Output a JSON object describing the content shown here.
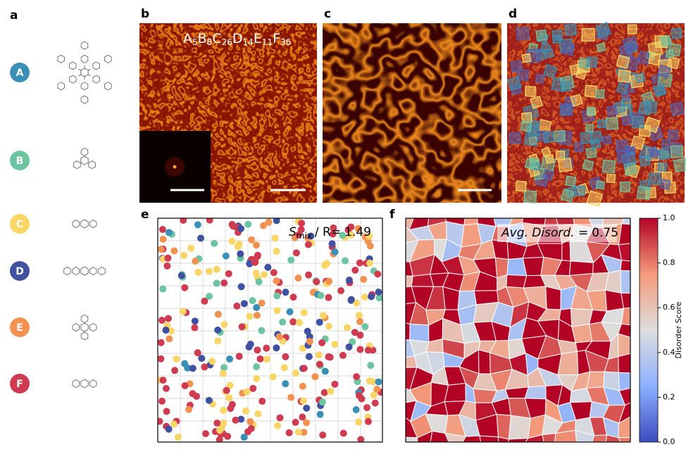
{
  "panels": [
    "a",
    "b",
    "c",
    "d",
    "e",
    "f"
  ],
  "molecules": [
    {
      "label": "A",
      "color": "#3a8fb4"
    },
    {
      "label": "B",
      "color": "#6cc4a0"
    },
    {
      "label": "C",
      "color": "#f8d565"
    },
    {
      "label": "D",
      "color": "#3f51a0"
    },
    {
      "label": "E",
      "color": "#f29150"
    },
    {
      "label": "F",
      "color": "#cf3b50"
    }
  ],
  "formula": [
    {
      "species": "A",
      "count": 5
    },
    {
      "species": "B",
      "count": 8
    },
    {
      "species": "C",
      "count": 26
    },
    {
      "species": "D",
      "count": 14
    },
    {
      "species": "E",
      "count": 11
    },
    {
      "species": "F",
      "count": 36
    }
  ],
  "smix": {
    "symbol": "S",
    "subscript": "mix",
    "text": "/ R=",
    "value": 1.49
  },
  "disorder": {
    "label": "Avg. Disord. =",
    "value": 0.75
  },
  "colorbar": {
    "label": "Disorder Score",
    "ylim": [
      0,
      1
    ],
    "yticks": [
      {
        "value": 0,
        "label": "0.0"
      },
      0.2,
      0.4,
      0.6,
      0.8,
      {
        "value": 1,
        "label": "1.0"
      }
    ]
  }
}
